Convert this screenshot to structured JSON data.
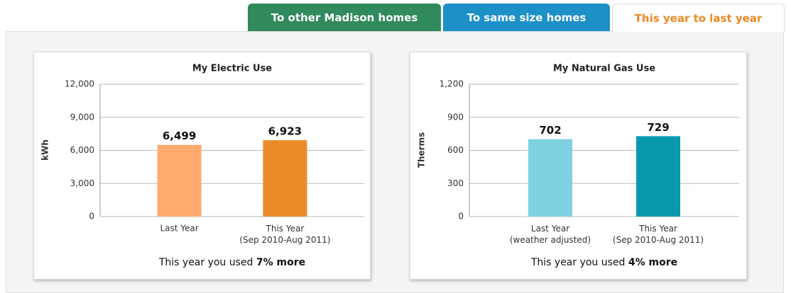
{
  "tabs": [
    "To other Madison homes",
    "To same size homes",
    "This year to last year"
  ],
  "chart_data": [
    {
      "type": "bar",
      "title": "My Electric Use",
      "y_label": "kWh",
      "categories": [
        "Last Year",
        "This Year\n(Sep 2010-Aug 2011)"
      ],
      "values": [
        6499,
        6923
      ],
      "value_labels": [
        "6,499",
        "6,923"
      ],
      "colors": [
        "#ffaa6e",
        "#ec8a2a"
      ],
      "ylim": [
        0,
        12000
      ],
      "yticks": [
        0,
        {
          "value": 3000,
          "label": "3,000"
        },
        {
          "value": 6000,
          "label": "6,000"
        },
        {
          "value": 9000,
          "label": "9,000"
        },
        {
          "value": 12000,
          "label": "12,000"
        }
      ],
      "grid": true,
      "note": "This year you used",
      "note_bold": "7% more"
    },
    {
      "type": "bar",
      "title": "My Natural Gas Use",
      "y_label": "Therms",
      "categories": [
        "Last Year\n(weather adjusted)",
        "This Year\n(Sep 2010-Aug 2011)"
      ],
      "values": [
        702,
        729
      ],
      "colors": [
        "#7fd1df",
        "#0899ad"
      ],
      "ylim": [
        0,
        1200
      ],
      "yticks": [
        0,
        300,
        600,
        900,
        {
          "value": 1200,
          "label": "1,200"
        }
      ],
      "grid": true,
      "note": "This year you used",
      "note_bold": "4% more"
    }
  ]
}
